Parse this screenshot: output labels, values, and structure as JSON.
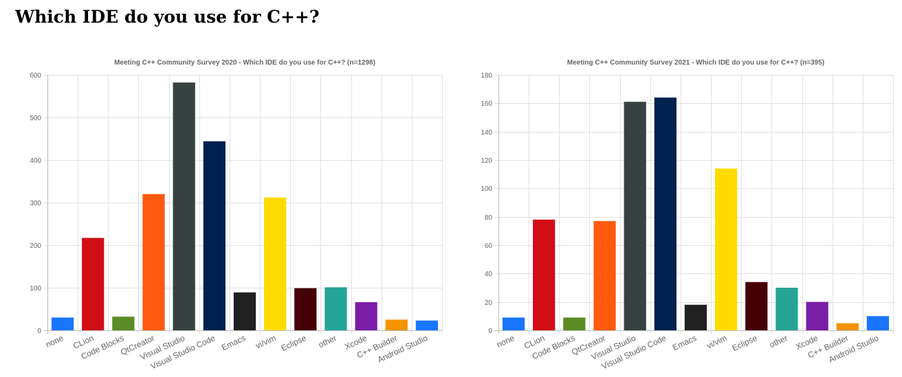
{
  "page": {
    "title": "Which IDE do you use for C++?"
  },
  "chart_data": [
    {
      "type": "bar",
      "title": "Meeting C++ Community Survey 2020 - Which IDE do you use for C++? (n=1298)",
      "xlabel": "",
      "ylabel": "",
      "categories": [
        "none",
        "CLion",
        "Code Blocks",
        "QtCreator",
        "Visual Studio",
        "Visual Studio Code",
        "Emacs",
        "vi/vim",
        "Eclipse",
        "other",
        "Xcode",
        "C++ Builder",
        "Android Studio"
      ],
      "values": [
        30,
        217,
        32,
        320,
        582,
        444,
        89,
        312,
        99,
        101,
        66,
        25,
        23
      ],
      "colors": [
        "#1a75ff",
        "#d10d16",
        "#5b8c25",
        "#ff5a10",
        "#364240",
        "#002251",
        "#212121",
        "#ffdb00",
        "#440005",
        "#25a596",
        "#7a1da6",
        "#f59200",
        "#1a75ff"
      ],
      "ylim": [
        0,
        600
      ],
      "yticks": [
        0,
        100,
        200,
        300,
        400,
        500,
        600
      ],
      "grid": true,
      "legend": "none"
    },
    {
      "type": "bar",
      "title": "Meeting C++ Community Survey 2021  - Which IDE do you use for C++? (n=395)",
      "xlabel": "",
      "ylabel": "",
      "categories": [
        "none",
        "CLion",
        "Code Blocks",
        "QtCreator",
        "Visual Studio",
        "Visual Studio Code",
        "Emacs",
        "vi/vim",
        "Eclipse",
        "other",
        "Xcode",
        "C++ Builder",
        "Android Studio"
      ],
      "values": [
        9,
        78,
        9,
        77,
        161,
        164,
        18,
        114,
        34,
        30,
        20,
        5,
        10
      ],
      "colors": [
        "#1a75ff",
        "#d10d16",
        "#5b8c25",
        "#ff5a10",
        "#364240",
        "#002251",
        "#212121",
        "#ffdb00",
        "#440005",
        "#25a596",
        "#7a1da6",
        "#f59200",
        "#1a75ff"
      ],
      "ylim": [
        0,
        180
      ],
      "yticks": [
        0,
        20,
        40,
        60,
        80,
        100,
        120,
        140,
        160,
        180
      ],
      "grid": true,
      "legend": "none"
    }
  ]
}
